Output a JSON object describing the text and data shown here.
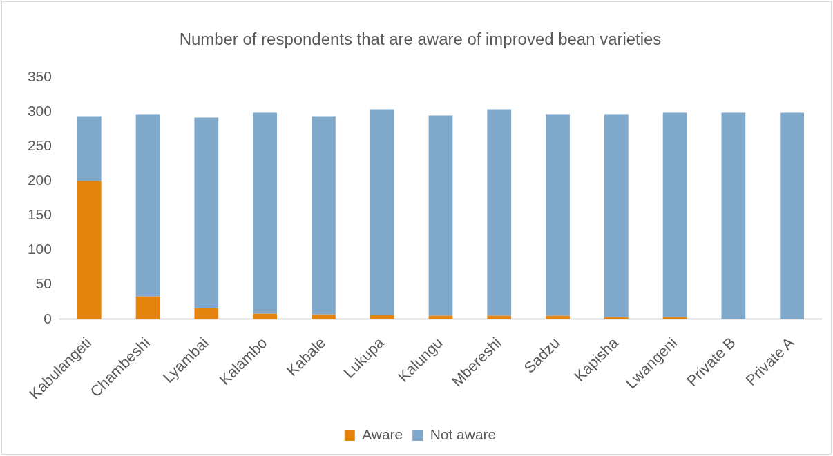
{
  "chart_data": {
    "type": "bar",
    "title": "Number of respondents that are aware of improved bean varieties",
    "categories": [
      "Kabulangeti",
      "Chambeshi",
      "Lyambai",
      "Kalambo",
      "Kabale",
      "Lukupa",
      "Kalungu",
      "Mbereshi",
      "Sadzu",
      "Kapisha",
      "Lwangeni",
      "Private B",
      "Private A"
    ],
    "series": [
      {
        "name": "Aware",
        "color": "#e5830f",
        "values": [
          200,
          33,
          16,
          8,
          7,
          6,
          5,
          5,
          5,
          3,
          3,
          0,
          0
        ]
      },
      {
        "name": "Not aware",
        "color": "#7fa8cb",
        "values": [
          94,
          264,
          276,
          291,
          287,
          298,
          290,
          299,
          292,
          294,
          296,
          299,
          299
        ]
      }
    ],
    "stacked": true,
    "ylim": [
      0,
      350
    ],
    "yticks": [
      0,
      50,
      100,
      150,
      200,
      250,
      300,
      350
    ],
    "grid": false,
    "legend": "bottom"
  }
}
